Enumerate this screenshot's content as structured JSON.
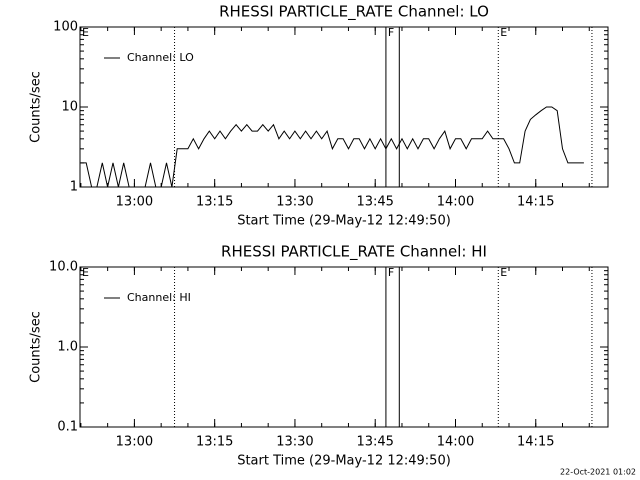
{
  "chart_data": [
    {
      "type": "line",
      "title": "RHESSI PARTICLE_RATE Channel: LO",
      "xlabel": "Start Time (29-May-12 12:49:50)",
      "ylabel": "Counts/sec",
      "log_y": true,
      "ylim": [
        1,
        100
      ],
      "yticks": [
        1,
        10,
        100
      ],
      "xlim": [
        "12:49:50",
        "14:28:30"
      ],
      "xticks": [
        "13:00",
        "13:15",
        "13:30",
        "13:45",
        "14:00",
        "14:15"
      ],
      "legend": "upper left",
      "x": [
        "12:50",
        "12:51",
        "12:52",
        "12:53",
        "12:54",
        "12:55",
        "12:56",
        "12:57",
        "12:58",
        "12:59",
        "13:00",
        "13:01",
        "13:02",
        "13:03",
        "13:04",
        "13:05",
        "13:06",
        "13:07",
        "13:08",
        "13:09",
        "13:10",
        "13:11",
        "13:12",
        "13:13",
        "13:14",
        "13:15",
        "13:16",
        "13:17",
        "13:18",
        "13:19",
        "13:20",
        "13:21",
        "13:22",
        "13:23",
        "13:24",
        "13:25",
        "13:26",
        "13:27",
        "13:28",
        "13:29",
        "13:30",
        "13:31",
        "13:32",
        "13:33",
        "13:34",
        "13:35",
        "13:36",
        "13:37",
        "13:38",
        "13:39",
        "13:40",
        "13:41",
        "13:42",
        "13:43",
        "13:44",
        "13:45",
        "13:46",
        "13:47",
        "13:48",
        "13:49",
        "13:50",
        "13:51",
        "13:52",
        "13:53",
        "13:54",
        "13:55",
        "13:56",
        "13:57",
        "13:58",
        "13:59",
        "14:00",
        "14:01",
        "14:02",
        "14:03",
        "14:04",
        "14:05",
        "14:06",
        "14:07",
        "14:08",
        "14:09",
        "14:10",
        "14:11",
        "14:12",
        "14:13",
        "14:14",
        "14:15",
        "14:16",
        "14:17",
        "14:18",
        "14:19",
        "14:20",
        "14:21",
        "14:22",
        "14:23",
        "14:24"
      ],
      "series": [
        {
          "name": "Channel: LO",
          "color": "#000000",
          "values": [
            2,
            2,
            1,
            1,
            2,
            1,
            2,
            1,
            2,
            1,
            1,
            1,
            1,
            2,
            1,
            1,
            2,
            1,
            3,
            3,
            3,
            4,
            3,
            4,
            5,
            4,
            5,
            4,
            5,
            6,
            5,
            6,
            5,
            5,
            6,
            5,
            6,
            4,
            5,
            4,
            5,
            4,
            5,
            4,
            5,
            4,
            5,
            3,
            4,
            4,
            3,
            4,
            4,
            3,
            4,
            3,
            4,
            3,
            4,
            3,
            4,
            3,
            4,
            3,
            4,
            4,
            3,
            4,
            5,
            3,
            4,
            4,
            3,
            4,
            4,
            4,
            5,
            4,
            4,
            4,
            3,
            2,
            2,
            5,
            7,
            8,
            9,
            10,
            10,
            9,
            3,
            2,
            2,
            2,
            2
          ]
        }
      ],
      "markers": [
        {
          "x": "13:07:30",
          "style": "dotted"
        },
        {
          "x": "13:47:00",
          "style": "solid"
        },
        {
          "x": "13:49:30",
          "style": "solid"
        },
        {
          "x": "14:08:00",
          "style": "dotted"
        },
        {
          "x": "14:25:30",
          "style": "dotted"
        }
      ],
      "flags": [
        {
          "text": "E",
          "x": "12:49:50"
        },
        {
          "text": "F",
          "x": "13:47:00"
        },
        {
          "text": "E",
          "x": "14:08:00"
        }
      ]
    },
    {
      "type": "line",
      "title": "RHESSI PARTICLE_RATE Channel: HI",
      "xlabel": "Start Time (29-May-12 12:49:50)",
      "ylabel": "Counts/sec",
      "log_y": true,
      "ylim": [
        0.1,
        10
      ],
      "yticks": [
        0.1,
        {
          "value": 1,
          "label": "1.0"
        },
        {
          "value": 10,
          "label": "10.0"
        }
      ],
      "xlim": [
        "12:49:50",
        "14:28:30"
      ],
      "xticks": [
        "13:00",
        "13:15",
        "13:30",
        "13:45",
        "14:00",
        "14:15"
      ],
      "legend": "upper left",
      "x": [],
      "series": [
        {
          "name": "Channel: HI",
          "color": "#000000",
          "values": []
        }
      ],
      "markers": [
        {
          "x": "13:07:30",
          "style": "dotted"
        },
        {
          "x": "13:47:00",
          "style": "solid"
        },
        {
          "x": "13:49:30",
          "style": "solid"
        },
        {
          "x": "14:08:00",
          "style": "dotted"
        },
        {
          "x": "14:25:30",
          "style": "dotted"
        }
      ],
      "flags": [
        {
          "text": "E",
          "x": "12:49:50"
        },
        {
          "text": "F",
          "x": "13:47:00"
        },
        {
          "text": "E",
          "x": "14:08:00"
        }
      ],
      "footer": "22-Oct-2021 01:02"
    }
  ]
}
